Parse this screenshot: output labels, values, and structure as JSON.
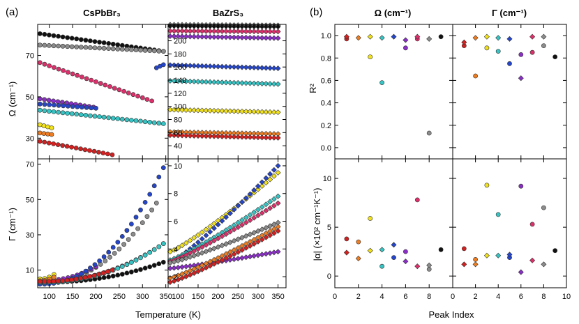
{
  "panel_labels": {
    "a": "(a)",
    "b": "(b)"
  },
  "headers": {
    "cs": "CsPbBr₃",
    "ba": "BaZrS₃",
    "omega": "Ω (cm⁻¹)",
    "gamma": "Γ (cm⁻¹)"
  },
  "axis_labels": {
    "omega_y": "Ω (cm⁻¹)",
    "gamma_y": "Γ (cm⁻¹)",
    "temp_x": "Temperature (K)",
    "r2_y": "R²",
    "alpha_y": "|α| (×10² cm⁻¹K⁻¹)",
    "peak_x": "Peak Index"
  },
  "colors": {
    "1": "#d61f1f",
    "2": "#ee7d22",
    "3": "#f2e21b",
    "4": "#36c4c4",
    "5": "#2546c9",
    "6": "#8a2fc6",
    "7": "#dd2f6b",
    "8": "#8c8c8c",
    "9": "#111111"
  },
  "chart_data": [
    {
      "id": "cs_omega",
      "type": "scatter",
      "xlim": [
        75,
        355
      ],
      "ylim": [
        20,
        85
      ],
      "yticks": [
        30,
        50,
        70
      ],
      "series": [
        {
          "peak": 9,
          "x0": 80,
          "x1": 345,
          "y0": 80.5,
          "y1": 72
        },
        {
          "peak": 8,
          "x0": 80,
          "x1": 345,
          "y0": 75,
          "y1": 72
        },
        {
          "peak": 7,
          "x0": 80,
          "x1": 320,
          "y0": 66.5,
          "y1": 48
        },
        {
          "peak": 6,
          "x0": 80,
          "x1": 195,
          "y0": 49,
          "y1": 45
        },
        {
          "peak": 5,
          "x0": 80,
          "x1": 200,
          "y0": 46.5,
          "y1": 44.5
        },
        {
          "peak": 5,
          "x0": 330,
          "x1": 345,
          "y0": 64,
          "y1": 65.5
        },
        {
          "peak": 4,
          "x0": 80,
          "x1": 345,
          "y0": 43.5,
          "y1": 37
        },
        {
          "peak": 3,
          "x0": 80,
          "x1": 105,
          "y0": 36.5,
          "y1": 35
        },
        {
          "peak": 2,
          "x0": 80,
          "x1": 105,
          "y0": 32.5,
          "y1": 31.8
        },
        {
          "peak": 1,
          "x0": 80,
          "x1": 235,
          "y0": 28.5,
          "y1": 22
        }
      ]
    },
    {
      "id": "ba_omega",
      "type": "scatter",
      "xlim": [
        75,
        370
      ],
      "ylim": [
        20,
        225
      ],
      "yticks": [
        40,
        60,
        80,
        100,
        120,
        140,
        160,
        180,
        200
      ],
      "series": [
        {
          "peak": 8,
          "x0": 80,
          "x1": 350,
          "y0": 224.5,
          "y1": 223.5
        },
        {
          "peak": 9,
          "x0": 80,
          "x1": 350,
          "y0": 222.5,
          "y1": 221.5
        },
        {
          "peak": 7,
          "x0": 80,
          "x1": 350,
          "y0": 215,
          "y1": 214
        },
        {
          "peak": 6,
          "x0": 80,
          "x1": 350,
          "y0": 207,
          "y1": 204
        },
        {
          "peak": 5,
          "x0": 80,
          "x1": 350,
          "y0": 163,
          "y1": 158
        },
        {
          "peak": 4,
          "x0": 80,
          "x1": 350,
          "y0": 139,
          "y1": 134
        },
        {
          "peak": 3,
          "x0": 80,
          "x1": 350,
          "y0": 95,
          "y1": 91
        },
        {
          "peak": 2,
          "x0": 80,
          "x1": 350,
          "y0": 61,
          "y1": 58
        },
        {
          "peak": 1,
          "x0": 80,
          "x1": 350,
          "y0": 56,
          "y1": 52
        }
      ]
    },
    {
      "id": "cs_gamma",
      "type": "scatter",
      "xlim": [
        75,
        355
      ],
      "ylim": [
        0,
        73
      ],
      "yticks": [
        10,
        30,
        50,
        70
      ],
      "xticks": [
        100,
        150,
        200,
        250,
        300,
        350
      ],
      "series": [
        {
          "peak": 9,
          "x0": 80,
          "x1": 345,
          "y0": 3,
          "y1": 14.5
        },
        {
          "peak": 8,
          "x0": 80,
          "x1": 330,
          "y0": 2.5,
          "y1": 48
        },
        {
          "peak": 7,
          "x0": 80,
          "x1": 345,
          "y0": 3.5,
          "y1": 25
        },
        {
          "peak": 6,
          "x0": 80,
          "x1": 200,
          "y0": 4,
          "y1": 12
        },
        {
          "peak": 5,
          "x0": 80,
          "x1": 345,
          "y0": 2,
          "y1": 68
        },
        {
          "peak": 4,
          "x0": 80,
          "x1": 345,
          "y0": 3,
          "y1": 25
        },
        {
          "peak": 3,
          "x0": 80,
          "x1": 110,
          "y0": 5,
          "y1": 7.5
        },
        {
          "peak": 2,
          "x0": 80,
          "x1": 110,
          "y0": 4,
          "y1": 6
        },
        {
          "peak": 1,
          "x0": 80,
          "x1": 235,
          "y0": 3.5,
          "y1": 10
        }
      ]
    },
    {
      "id": "ba_gamma",
      "type": "scatter",
      "xlim": [
        75,
        370
      ],
      "ylim": [
        1.2,
        10.5
      ],
      "yticks": [
        2,
        4,
        6,
        8,
        10
      ],
      "xticks": [
        100,
        150,
        200,
        250,
        300,
        350
      ],
      "series": [
        {
          "peak": 3,
          "x0": 80,
          "x1": 350,
          "y0": 3.8,
          "y1": 9.5
        },
        {
          "peak": 5,
          "x0": 80,
          "x1": 350,
          "y0": 3.0,
          "y1": 10.0
        },
        {
          "peak": 4,
          "x0": 80,
          "x1": 350,
          "y0": 3.2,
          "y1": 7.8
        },
        {
          "peak": 7,
          "x0": 80,
          "x1": 350,
          "y0": 3.1,
          "y1": 7.3
        },
        {
          "peak": 8,
          "x0": 80,
          "x1": 350,
          "y0": 3.0,
          "y1": 5.9
        },
        {
          "peak": 6,
          "x0": 80,
          "x1": 350,
          "y0": 2.6,
          "y1": 3.8
        },
        {
          "peak": 2,
          "x0": 80,
          "x1": 350,
          "y0": 1.9,
          "y1": 5.6
        },
        {
          "peak": 1,
          "x0": 80,
          "x1": 350,
          "y0": 1.6,
          "y1": 5.3
        }
      ]
    },
    {
      "id": "r2",
      "type": "scatter",
      "xlim": [
        0,
        10
      ],
      "ylim": [
        -0.1,
        1.1
      ],
      "yticks": [
        0.0,
        0.2,
        0.4,
        0.6,
        0.8,
        1.0
      ],
      "omega": {
        "circles": [
          [
            1,
            0.97,
            1
          ],
          [
            3,
            0.81,
            3
          ],
          [
            4,
            0.58,
            4
          ],
          [
            6,
            0.89,
            6
          ],
          [
            7,
            0.97,
            7
          ],
          [
            8,
            0.13,
            8
          ],
          [
            9,
            0.99,
            9
          ]
        ],
        "diamonds": [
          [
            1,
            0.99,
            1
          ],
          [
            2,
            0.98,
            2
          ],
          [
            3,
            0.99,
            3
          ],
          [
            4,
            0.98,
            4
          ],
          [
            5,
            0.99,
            5
          ],
          [
            6,
            0.96,
            6
          ],
          [
            7,
            0.99,
            7
          ],
          [
            8,
            0.97,
            8
          ]
        ]
      },
      "gamma": {
        "circles": [
          [
            1,
            0.91,
            1
          ],
          [
            2,
            0.64,
            2
          ],
          [
            3,
            0.89,
            3
          ],
          [
            4,
            0.86,
            4
          ],
          [
            5,
            0.75,
            5
          ],
          [
            6,
            0.83,
            6
          ],
          [
            7,
            0.85,
            7
          ],
          [
            8,
            0.91,
            8
          ],
          [
            9,
            0.81,
            9
          ]
        ],
        "diamonds": [
          [
            1,
            0.94,
            1
          ],
          [
            2,
            0.98,
            2
          ],
          [
            3,
            0.99,
            3
          ],
          [
            4,
            0.98,
            4
          ],
          [
            5,
            0.97,
            5
          ],
          [
            6,
            0.62,
            6
          ],
          [
            7,
            0.99,
            7
          ],
          [
            8,
            0.99,
            8
          ]
        ]
      }
    },
    {
      "id": "alpha",
      "type": "scatter",
      "xlim": [
        0,
        10
      ],
      "ylim": [
        -1.2,
        12
      ],
      "yticks": [
        0,
        5,
        10
      ],
      "xticks": [
        0,
        2,
        4,
        6,
        8,
        10
      ],
      "omega": {
        "circles": [
          [
            1,
            3.8,
            1
          ],
          [
            2,
            3.5,
            2
          ],
          [
            3,
            5.9,
            3
          ],
          [
            4,
            1.0,
            4
          ],
          [
            5,
            1.9,
            5
          ],
          [
            6,
            2.5,
            6
          ],
          [
            7,
            7.8,
            7
          ],
          [
            8,
            0.7,
            8
          ],
          [
            9,
            2.7,
            9
          ]
        ],
        "diamonds": [
          [
            1,
            2.4,
            1
          ],
          [
            2,
            1.8,
            2
          ],
          [
            3,
            2.6,
            3
          ],
          [
            4,
            2.7,
            4
          ],
          [
            5,
            3.2,
            5
          ],
          [
            6,
            1.5,
            6
          ],
          [
            7,
            1.0,
            7
          ],
          [
            8,
            1.1,
            8
          ]
        ]
      },
      "gamma": {
        "circles": [
          [
            1,
            2.8,
            1
          ],
          [
            2,
            1.7,
            2
          ],
          [
            3,
            9.3,
            3
          ],
          [
            4,
            6.3,
            4
          ],
          [
            5,
            1.9,
            5
          ],
          [
            6,
            9.2,
            6
          ],
          [
            7,
            5.3,
            7
          ],
          [
            8,
            7.0,
            8
          ],
          [
            9,
            2.6,
            9
          ]
        ],
        "diamonds": [
          [
            1,
            1.2,
            1
          ],
          [
            2,
            1.2,
            2
          ],
          [
            3,
            2.1,
            3
          ],
          [
            4,
            2.1,
            4
          ],
          [
            5,
            2.2,
            5
          ],
          [
            6,
            0.4,
            6
          ],
          [
            7,
            1.6,
            7
          ],
          [
            8,
            1.2,
            8
          ]
        ]
      }
    }
  ]
}
